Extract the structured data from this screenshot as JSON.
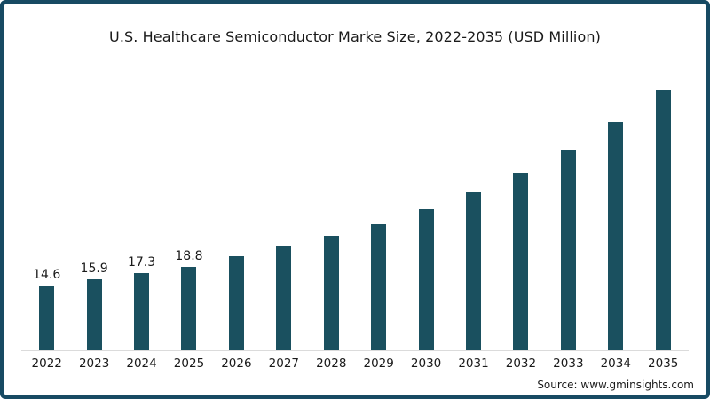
{
  "frame": {
    "border_color": "#174a63",
    "background": "#ffffff"
  },
  "source_note": "Source: www.gminsights.com",
  "chart_data": {
    "type": "bar",
    "title": "U.S. Healthcare Semiconductor Marke Size, 2022-2035 (USD Million)",
    "xlabel": "",
    "ylabel": "",
    "categories": [
      "2022",
      "2023",
      "2024",
      "2025",
      "2026",
      "2027",
      "2028",
      "2029",
      "2030",
      "2031",
      "2032",
      "2033",
      "2034",
      "2035"
    ],
    "values": [
      14.6,
      15.9,
      17.3,
      18.8,
      21.1,
      23.3,
      25.6,
      28.2,
      31.6,
      35.4,
      39.8,
      44.9,
      51.1,
      58.3
    ],
    "data_labels": [
      "14.6",
      "15.9",
      "17.3",
      "18.8",
      "",
      "",
      "",
      "",
      "",
      "",
      "",
      "",
      "",
      ""
    ],
    "ylim": [
      0,
      60
    ],
    "bar_color": "#1a505f",
    "axis_line_color": "#dbdbdb",
    "gridlines": false,
    "legend": "none",
    "y_axis_shown": false
  }
}
